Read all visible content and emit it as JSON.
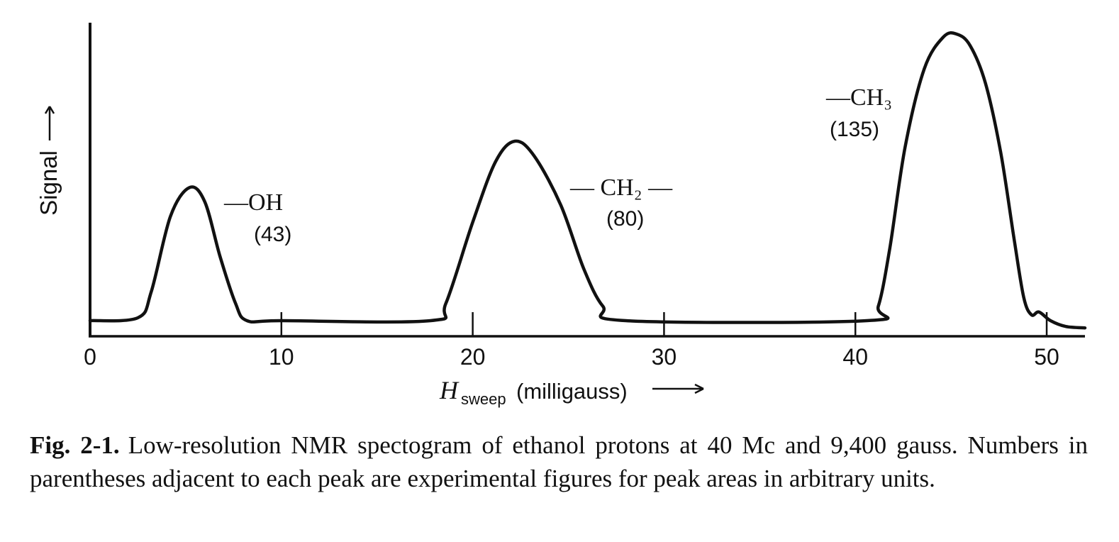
{
  "chart_data": {
    "type": "line",
    "xlabel": {
      "symbol": "H",
      "subscript": "sweep",
      "units": "(milligauss)"
    },
    "ylabel": "Signal",
    "xlim": [
      0,
      52
    ],
    "ylim": [
      0,
      1
    ],
    "x_ticks": [
      0,
      10,
      20,
      30,
      40,
      50
    ],
    "x_tick_labels": [
      "0",
      "10",
      "20",
      "30",
      "40",
      "50"
    ],
    "grid": false,
    "series": [
      {
        "x": [
          0,
          2.5,
          3.2,
          4.2,
          5.2,
          6.0,
          6.8,
          7.6,
          8.2,
          10,
          17.8,
          18.6,
          20.0,
          21.2,
          22.2,
          23.2,
          24.6,
          25.8,
          26.8,
          28,
          40.6,
          41.2,
          41.8,
          42.6,
          43.6,
          44.6,
          45.3,
          46.0,
          46.8,
          47.6,
          48.3,
          48.8,
          49.2,
          49.6,
          50.2,
          51,
          52
        ],
        "y": [
          0.0,
          0.01,
          0.1,
          0.36,
          0.46,
          0.41,
          0.22,
          0.06,
          0.0,
          0.0,
          0.0,
          0.06,
          0.34,
          0.55,
          0.62,
          0.57,
          0.4,
          0.18,
          0.05,
          0.0,
          0.0,
          0.05,
          0.25,
          0.6,
          0.87,
          0.98,
          0.99,
          0.95,
          0.82,
          0.58,
          0.28,
          0.08,
          0.02,
          0.03,
          0.0,
          -0.02,
          -0.025
        ]
      }
    ],
    "peaks": [
      {
        "group": "—OH",
        "area": "(43)",
        "x": 5.3,
        "y": 0.46
      },
      {
        "group": "— CH₂ —",
        "area": "(80)",
        "x": 22.3,
        "y": 0.62
      },
      {
        "group": "—CH₃",
        "area": "(135)",
        "x": 45.3,
        "y": 0.99
      }
    ]
  },
  "caption": {
    "label": "Fig. 2-1.",
    "text": "Low-resolution NMR spectogram of ethanol protons at 40 Mc and 9,400 gauss. Numbers in parentheses adjacent to each peak are experimental figures for peak areas in arbitrary units."
  }
}
